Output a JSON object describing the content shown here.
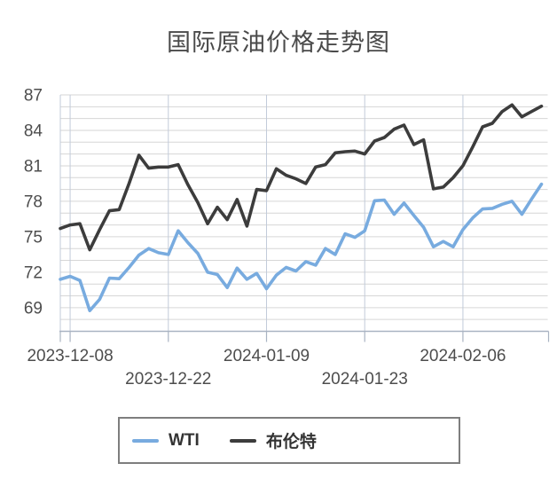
{
  "chart_data": {
    "type": "line",
    "title": "国际原油价格走势图",
    "xlabel": "",
    "ylabel": "",
    "grid": true,
    "legend_position": "bottom",
    "background": "#ffffff",
    "axis_color": "#a9b3c2",
    "h_grid_color": "#d6d6d6",
    "v_grid_color": "#c2cbda",
    "label_color": "#4d4d4d",
    "y_range": [
      67,
      87
    ],
    "y_ticks": [
      69,
      72,
      75,
      78,
      81,
      84,
      87
    ],
    "x_tick_indices": [
      1,
      11,
      21,
      31,
      41
    ],
    "x_tick_labels": [
      "2023-12-08",
      "2023-12-22",
      "2024-01-09",
      "2024-01-23",
      "2024-02-06"
    ],
    "point_count": 50,
    "series": [
      {
        "name": "WTI",
        "color": "#78abdf",
        "values": [
          71.4,
          71.65,
          71.3,
          68.75,
          69.7,
          71.5,
          71.45,
          72.4,
          73.45,
          74,
          73.65,
          73.5,
          75.5,
          74.5,
          73.6,
          72,
          71.8,
          70.7,
          72.35,
          71.4,
          71.9,
          70.6,
          71.75,
          72.4,
          72.1,
          72.9,
          72.6,
          74,
          73.5,
          75.25,
          74.95,
          75.5,
          78.05,
          78.1,
          76.9,
          77.85,
          76.8,
          75.8,
          74.15,
          74.6,
          74.15,
          75.6,
          76.6,
          77.35,
          77.4,
          77.75,
          78,
          76.9,
          78.2,
          79.45
        ]
      },
      {
        "name": "布伦特",
        "color": "#3c3c3c",
        "values": [
          75.7,
          76,
          76.1,
          73.9,
          75.6,
          77.2,
          77.3,
          79.5,
          81.9,
          80.8,
          80.9,
          80.9,
          81.1,
          79.4,
          77.9,
          76.1,
          77.5,
          76.45,
          78.15,
          75.9,
          79,
          78.9,
          80.75,
          80.2,
          79.9,
          79.5,
          80.9,
          81.1,
          82.1,
          82.2,
          82.25,
          82,
          83.1,
          83.4,
          84.1,
          84.45,
          82.8,
          83.2,
          79.05,
          79.2,
          80,
          81,
          82.6,
          84.3,
          84.6,
          85.6,
          86.15,
          85.15,
          85.6,
          86.05
        ]
      }
    ]
  }
}
